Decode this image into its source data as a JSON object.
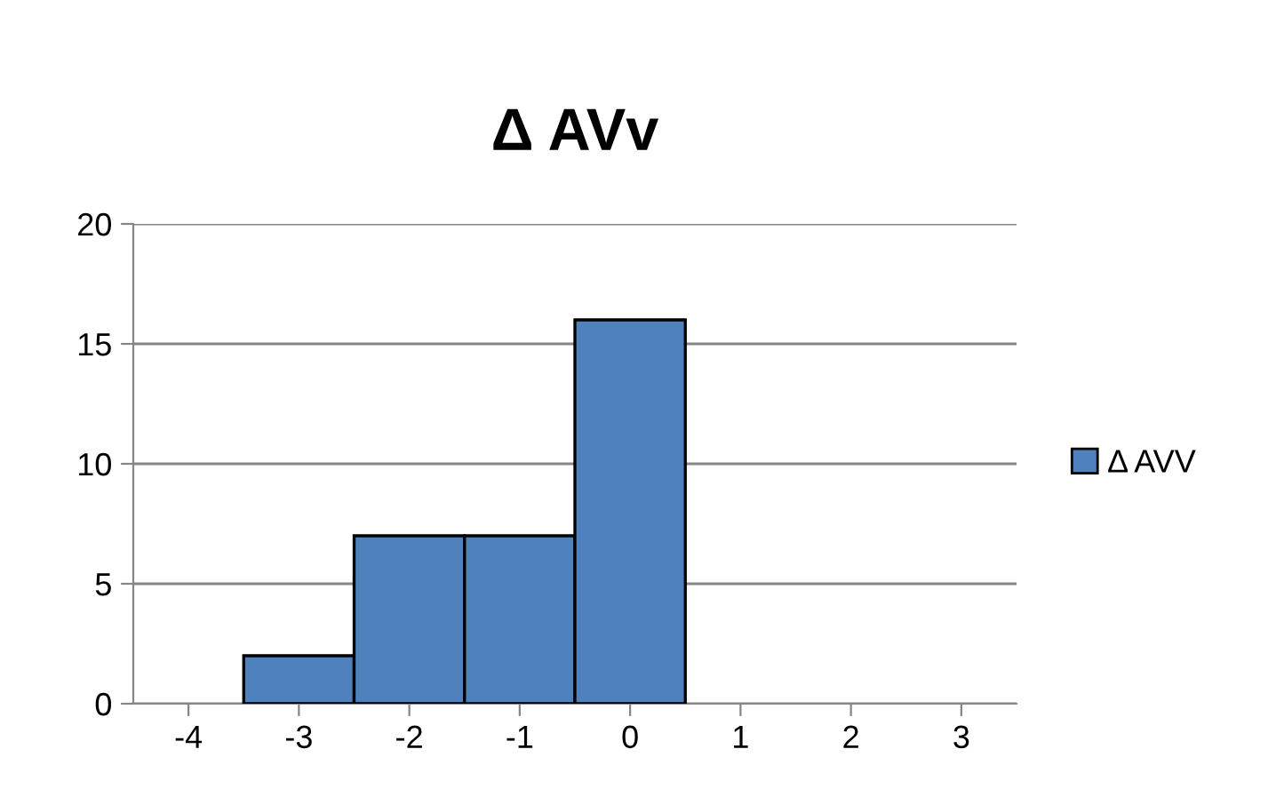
{
  "chart_data": {
    "type": "bar",
    "title": "Δ AVv",
    "categories": [
      "-4",
      "-3",
      "-2",
      "-1",
      "0",
      "1",
      "2",
      "3"
    ],
    "series": [
      {
        "name": "Δ AVV",
        "color": "#4f81bd",
        "values": [
          0,
          2,
          7,
          7,
          16,
          0,
          0,
          0
        ]
      }
    ],
    "ylim": [
      0,
      20
    ],
    "yticks": [
      0,
      5,
      10,
      15,
      20
    ],
    "grid": "y",
    "legend": "right"
  }
}
